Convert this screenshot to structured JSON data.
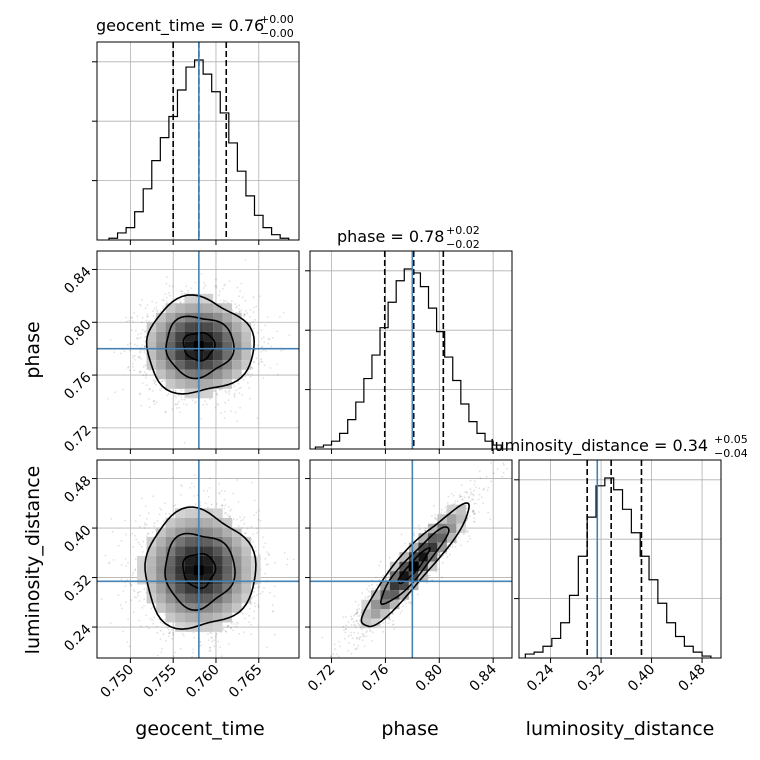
{
  "chart_data": {
    "type": "corner",
    "params": [
      "geocent_time",
      "phase",
      "luminosity_distance"
    ],
    "axis_labels": [
      "geocent_time",
      "phase",
      "luminosity_distance"
    ],
    "ranges": {
      "geocent_time": [
        0.7461,
        0.7697
      ],
      "phase": [
        0.704,
        0.854
      ],
      "luminosity_distance": [
        0.19,
        0.51
      ]
    },
    "ticks": {
      "geocent_time": [
        0.75,
        0.755,
        0.76,
        0.765
      ],
      "phase": [
        0.72,
        0.76,
        0.8,
        0.84
      ],
      "luminosity_distance": [
        0.24,
        0.32,
        0.4,
        0.48
      ]
    },
    "tick_labels": {
      "geocent_time": [
        "0.750",
        "0.755",
        "0.760",
        "0.765"
      ],
      "phase": [
        "0.72",
        "0.76",
        "0.80",
        "0.84"
      ],
      "luminosity_distance": [
        "0.24",
        "0.32",
        "0.40",
        "0.48"
      ]
    },
    "truths": {
      "geocent_time": 0.758,
      "phase": 0.78,
      "luminosity_distance": 0.314
    },
    "quantiles": {
      "geocent_time": [
        0.755,
        0.758,
        0.7612
      ],
      "phase": [
        0.7595,
        0.781,
        0.803
      ],
      "luminosity_distance": [
        0.298,
        0.336,
        0.384
      ]
    },
    "titles": {
      "geocent_time": {
        "text": "geocent_time = 0.76",
        "plus": "+0.00",
        "minus": "−0.00"
      },
      "phase": {
        "text": "phase = 0.78",
        "plus": "+0.02",
        "minus": "−0.02"
      },
      "luminosity_distance": {
        "text": "luminosity_distance = 0.34",
        "plus": "+0.05",
        "minus": "−0.04"
      }
    },
    "histograms": {
      "geocent_time": {
        "edges": [
          0.7475,
          0.7485,
          0.7495,
          0.7505,
          0.7515,
          0.7525,
          0.7535,
          0.7545,
          0.7555,
          0.7565,
          0.7575,
          0.7585,
          0.7595,
          0.7605,
          0.7615,
          0.7625,
          0.7635,
          0.7645,
          0.7655,
          0.7665,
          0.7675,
          0.7685
        ],
        "counts": [
          1,
          4,
          7,
          16,
          29,
          45,
          58,
          70,
          85,
          98,
          102,
          94,
          84,
          72,
          55,
          39,
          25,
          14,
          7,
          3,
          1
        ]
      },
      "phase": {
        "edges": [
          0.708,
          0.714,
          0.72,
          0.726,
          0.732,
          0.738,
          0.744,
          0.75,
          0.756,
          0.762,
          0.768,
          0.774,
          0.78,
          0.786,
          0.792,
          0.798,
          0.804,
          0.81,
          0.816,
          0.822,
          0.828,
          0.834,
          0.84,
          0.846
        ],
        "counts": [
          1,
          2,
          4,
          8,
          15,
          24,
          36,
          48,
          62,
          75,
          86,
          92,
          90,
          83,
          72,
          60,
          47,
          35,
          23,
          14,
          8,
          4,
          2
        ]
      },
      "luminosity_distance": {
        "edges": [
          0.2,
          0.214,
          0.228,
          0.242,
          0.256,
          0.27,
          0.284,
          0.298,
          0.312,
          0.326,
          0.34,
          0.354,
          0.368,
          0.382,
          0.396,
          0.41,
          0.424,
          0.438,
          0.452,
          0.466,
          0.48,
          0.494
        ],
        "counts": [
          2,
          3,
          6,
          10,
          18,
          32,
          52,
          72,
          88,
          92,
          86,
          76,
          64,
          52,
          40,
          28,
          18,
          11,
          6,
          3,
          1
        ]
      }
    },
    "posterior_2d": {
      "phase_vs_geocent_time": {
        "mean": [
          0.758,
          0.782
        ],
        "sigma": [
          0.0033,
          0.019
        ],
        "rho": 0.0
      },
      "luminosity_distance_vs_geocent_time": {
        "mean": [
          0.758,
          0.332
        ],
        "sigma": [
          0.0034,
          0.05
        ],
        "rho": 0.0
      },
      "luminosity_distance_vs_phase": {
        "mean": [
          0.781,
          0.338
        ],
        "sigma": [
          0.021,
          0.052
        ],
        "rho": 0.93
      }
    },
    "truth_color": "#4682b4",
    "grid": true
  }
}
